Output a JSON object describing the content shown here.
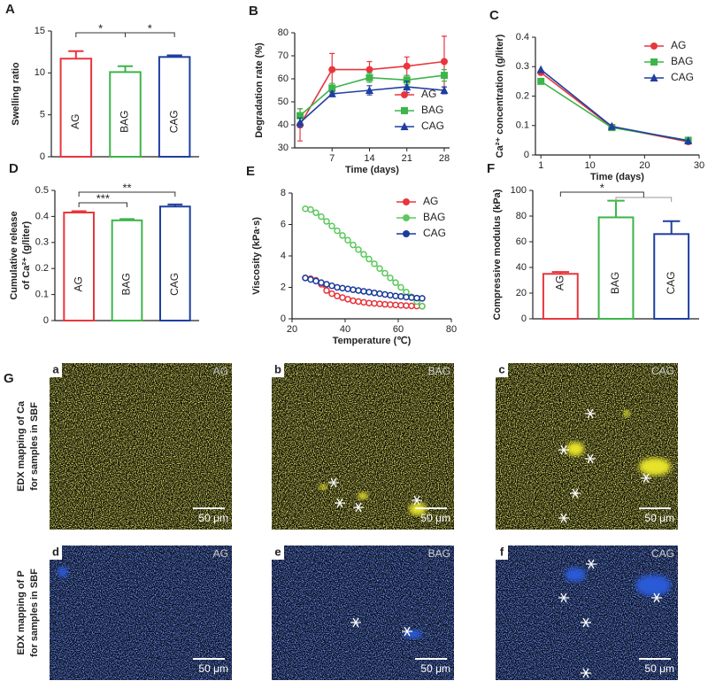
{
  "chart_data": [
    {
      "type": "bar",
      "panel_label": "A",
      "ylabel": [
        "Swelling ratio"
      ],
      "categories": [
        "AG",
        "BAG",
        "CAG"
      ],
      "values": [
        11.7,
        10.1,
        11.9
      ],
      "errors": [
        0.9,
        0.7,
        0.2
      ],
      "colors": [
        "#e8363d",
        "#3db54a",
        "#1f3f9f"
      ],
      "ylim": [
        0,
        15
      ],
      "yticks": [
        0,
        5,
        10,
        15
      ],
      "annotations": [
        {
          "text": "*",
          "between": [
            "AG",
            "BAG"
          ]
        },
        {
          "text": "*",
          "between": [
            "BAG",
            "CAG"
          ]
        }
      ]
    },
    {
      "type": "line",
      "panel_label": "B",
      "ylabel": [
        "Degradation rate (%)"
      ],
      "xlabel": "Time (days)",
      "x": [
        1,
        7,
        14,
        21,
        28
      ],
      "xlim": [
        0,
        29
      ],
      "xticks": [
        7,
        14,
        21,
        28
      ],
      "ylim": [
        30,
        80
      ],
      "yticks": [
        30,
        40,
        50,
        60,
        70,
        80
      ],
      "legend": "lower-right",
      "series": [
        {
          "name": "AG",
          "color": "#e8363d",
          "marker": "circle",
          "values": [
            40,
            64,
            64,
            65.5,
            67.5
          ],
          "errors": [
            7,
            7,
            3.5,
            4,
            11
          ]
        },
        {
          "name": "BAG",
          "color": "#3db54a",
          "marker": "square",
          "values": [
            44,
            56,
            60.5,
            59.5,
            61.5
          ],
          "errors": [
            3,
            2,
            2,
            2,
            2.5
          ]
        },
        {
          "name": "CAG",
          "color": "#1f3f9f",
          "marker": "triangle",
          "values": [
            41,
            53.5,
            55,
            56.5,
            55
          ],
          "errors": [
            2,
            1,
            2,
            2.5,
            1.5
          ]
        }
      ]
    },
    {
      "type": "line",
      "panel_label": "C",
      "ylabel": [
        "Ca²⁺ concentration (g/liter)"
      ],
      "xlabel": "Time (days)",
      "x": [
        1,
        14,
        28
      ],
      "xlim": [
        0,
        30
      ],
      "xticks": [
        1,
        10,
        20,
        30
      ],
      "ylim": [
        0,
        0.4
      ],
      "yticks": [
        0,
        0.1,
        0.2,
        0.3,
        0.4
      ],
      "legend": "upper-right",
      "series": [
        {
          "name": "AG",
          "color": "#e8363d",
          "marker": "circle",
          "values": [
            0.28,
            0.095,
            0.045
          ]
        },
        {
          "name": "BAG",
          "color": "#3db54a",
          "marker": "square",
          "values": [
            0.25,
            0.093,
            0.05
          ]
        },
        {
          "name": "CAG",
          "color": "#1f3f9f",
          "marker": "triangle",
          "values": [
            0.29,
            0.097,
            0.048
          ]
        }
      ]
    },
    {
      "type": "bar",
      "panel_label": "D",
      "ylabel": [
        "Cumulative release",
        "of Ca²⁺ (g/liter)"
      ],
      "categories": [
        "AG",
        "BAG",
        "CAG"
      ],
      "values": [
        0.415,
        0.385,
        0.438
      ],
      "errors": [
        0.005,
        0.005,
        0.008
      ],
      "colors": [
        "#e8363d",
        "#3db54a",
        "#1f3f9f"
      ],
      "ylim": [
        0,
        0.5
      ],
      "yticks": [
        0,
        0.1,
        0.2,
        0.3,
        0.4,
        0.5
      ],
      "annotations": [
        {
          "text": "***",
          "between": [
            "AG",
            "BAG"
          ]
        },
        {
          "text": "**",
          "between": [
            "AG",
            "CAG"
          ]
        }
      ]
    },
    {
      "type": "line",
      "panel_label": "E",
      "ylabel": [
        "Viscosity (kPa·s)"
      ],
      "xlabel": "Temperature (℃)",
      "x": [
        25,
        27,
        29,
        31,
        33,
        35,
        37,
        39,
        41,
        43,
        45,
        47,
        49,
        51,
        53,
        55,
        57,
        59,
        61,
        63,
        65,
        67,
        69
      ],
      "xlim": [
        20,
        80
      ],
      "xticks": [
        20,
        40,
        60,
        80
      ],
      "ylim": [
        0,
        8
      ],
      "yticks": [
        0,
        2,
        4,
        6,
        8
      ],
      "legend": "upper-right",
      "series": [
        {
          "name": "AG",
          "color": "#e8363d",
          "marker": "circle",
          "values": [
            2.6,
            2.55,
            2.45,
            2.2,
            1.8,
            1.6,
            1.45,
            1.35,
            1.25,
            1.15,
            1.1,
            1.05,
            1.0,
            0.98,
            0.95,
            0.92,
            0.9,
            0.88,
            0.86,
            0.84,
            0.82,
            0.81,
            0.8
          ]
        },
        {
          "name": "BAG",
          "color": "#5cc85c",
          "marker": "circle",
          "values": [
            7.0,
            6.95,
            6.75,
            6.5,
            6.2,
            5.9,
            5.6,
            5.3,
            5.0,
            4.7,
            4.4,
            4.1,
            3.8,
            3.5,
            3.2,
            2.9,
            2.6,
            2.3,
            2.0,
            1.7,
            1.4,
            1.1,
            0.8
          ]
        },
        {
          "name": "CAG",
          "color": "#1c3c9c",
          "marker": "circle",
          "values": [
            2.6,
            2.5,
            2.4,
            2.3,
            2.2,
            2.1,
            2.0,
            1.95,
            1.9,
            1.85,
            1.8,
            1.75,
            1.7,
            1.65,
            1.6,
            1.55,
            1.5,
            1.45,
            1.42,
            1.38,
            1.35,
            1.32,
            1.3
          ]
        }
      ]
    },
    {
      "type": "bar",
      "panel_label": "F",
      "ylabel": [
        "Compressive modulus (kPa)"
      ],
      "categories": [
        "AG",
        "BAG",
        "CAG"
      ],
      "values": [
        35,
        79,
        66
      ],
      "errors": [
        1.5,
        13,
        10
      ],
      "colors": [
        "#e8363d",
        "#3db54a",
        "#1f3f9f"
      ],
      "ylim": [
        0,
        100
      ],
      "yticks": [
        0,
        20,
        40,
        60,
        80,
        100
      ],
      "annotations": [
        {
          "text": "*",
          "between": [
            "AG",
            "BAG",
            "CAG"
          ]
        }
      ]
    }
  ],
  "panel_g": {
    "label": "G",
    "row_labels": [
      [
        "EDX mapping of Ca",
        "for samples in SBF"
      ],
      [
        "EDX mapping of P",
        "for samples in SBF"
      ]
    ],
    "images": [
      {
        "letter": "a",
        "sample": "AG",
        "scale": "50 μm"
      },
      {
        "letter": "b",
        "sample": "BAG",
        "scale": "50 μm"
      },
      {
        "letter": "c",
        "sample": "CAG",
        "scale": "50 μm"
      },
      {
        "letter": "d",
        "sample": "AG",
        "scale": "50 μm"
      },
      {
        "letter": "e",
        "sample": "BAG",
        "scale": "50 μm"
      },
      {
        "letter": "f",
        "sample": "CAG",
        "scale": "50 μm"
      }
    ]
  }
}
